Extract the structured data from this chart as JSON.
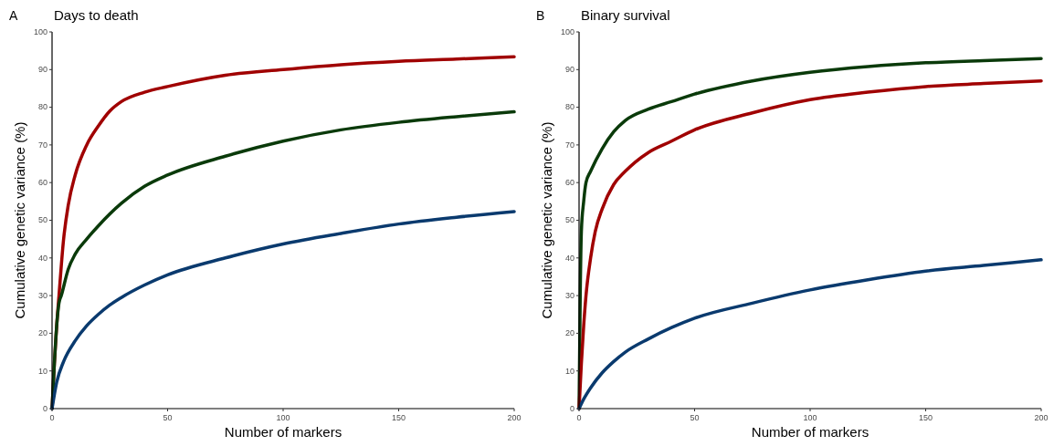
{
  "chart_data": [
    {
      "type": "line",
      "title": "Days to death",
      "annotations": [
        "A"
      ],
      "xlabel": "Number of markers",
      "ylabel": "Cumulative genetic variance (%)",
      "xlim": [
        0,
        200
      ],
      "xticks": [
        0,
        50,
        100,
        150,
        200
      ],
      "ylim": [
        0,
        100
      ],
      "yticks": [
        0,
        10,
        20,
        30,
        40,
        50,
        60,
        70,
        80,
        90,
        100
      ],
      "series": [
        {
          "color": "#a00000",
          "x": [
            0,
            1,
            2,
            3,
            5,
            7,
            10,
            15,
            20,
            25,
            30,
            40,
            50,
            75,
            100,
            125,
            150,
            175,
            200
          ],
          "values": [
            0,
            12,
            22,
            30,
            45,
            54,
            62,
            70,
            75,
            79,
            81.5,
            84,
            85.5,
            88.5,
            90,
            91.3,
            92.2,
            92.8,
            93.4
          ]
        },
        {
          "color": "#0a3a0a",
          "x": [
            0,
            1,
            2,
            3,
            4,
            7,
            10,
            15,
            20,
            30,
            40,
            50,
            75,
            100,
            125,
            150,
            175,
            200
          ],
          "values": [
            0,
            12,
            22,
            28,
            30,
            37,
            41,
            45,
            48.5,
            54.5,
            59,
            62,
            67,
            71,
            74,
            76,
            77.5,
            78.8
          ]
        },
        {
          "color": "#0a3a6e",
          "x": [
            0,
            2,
            5,
            10,
            15,
            20,
            25,
            30,
            40,
            50,
            75,
            100,
            125,
            150,
            175,
            200
          ],
          "values": [
            0,
            7,
            12.5,
            18,
            22,
            25,
            27.5,
            29.5,
            32.8,
            35.5,
            40,
            43.7,
            46.5,
            49,
            50.8,
            52.3
          ]
        }
      ]
    },
    {
      "type": "line",
      "title": "Binary survival",
      "annotations": [
        "B"
      ],
      "xlabel": "Number of markers",
      "ylabel": "Cumulative genetic variance (%)",
      "xlim": [
        0,
        200
      ],
      "xticks": [
        0,
        50,
        100,
        150,
        200
      ],
      "ylim": [
        0,
        100
      ],
      "yticks": [
        0,
        10,
        20,
        30,
        40,
        50,
        60,
        70,
        80,
        90,
        100
      ],
      "series": [
        {
          "color": "#0a3a0a",
          "x": [
            0,
            0.5,
            1,
            2,
            3,
            5,
            10,
            15,
            20,
            30,
            40,
            50,
            75,
            100,
            125,
            150,
            175,
            200
          ],
          "values": [
            0,
            30,
            47,
            55,
            60,
            63,
            69,
            73.5,
            76.5,
            79.5,
            81.5,
            83.5,
            87,
            89.3,
            90.8,
            91.8,
            92.4,
            92.9
          ]
        },
        {
          "color": "#a00000",
          "x": [
            0,
            1,
            2,
            3,
            5,
            7,
            10,
            15,
            20,
            30,
            40,
            50,
            75,
            100,
            125,
            150,
            175,
            200
          ],
          "values": [
            0,
            12,
            22,
            30,
            40,
            47,
            53,
            59.5,
            63,
            68,
            71,
            74,
            78.5,
            82,
            84,
            85.5,
            86.3,
            87
          ]
        },
        {
          "color": "#0a3a6e",
          "x": [
            0,
            2,
            5,
            10,
            15,
            20,
            30,
            40,
            50,
            75,
            100,
            125,
            150,
            175,
            200
          ],
          "values": [
            0,
            2.5,
            5.5,
            9.5,
            12.5,
            15,
            18.5,
            21.5,
            24,
            28,
            31.5,
            34.2,
            36.5,
            38,
            39.5
          ]
        }
      ]
    }
  ]
}
